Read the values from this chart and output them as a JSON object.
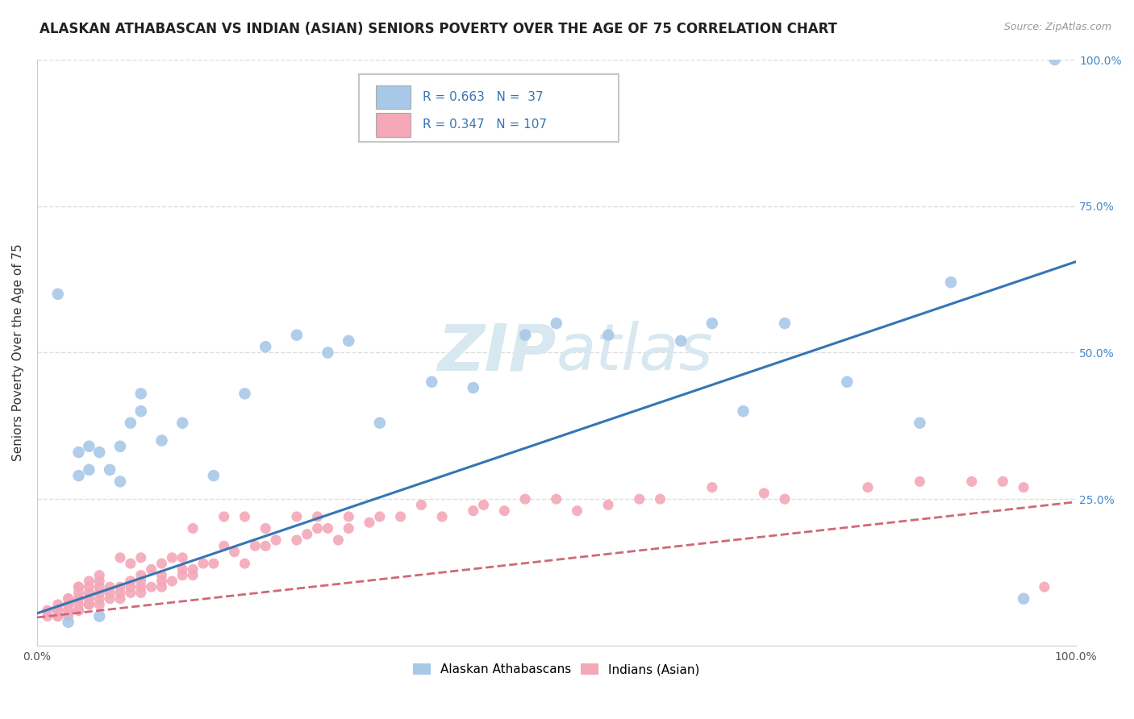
{
  "title": "ALASKAN ATHABASCAN VS INDIAN (ASIAN) SENIORS POVERTY OVER THE AGE OF 75 CORRELATION CHART",
  "source": "Source: ZipAtlas.com",
  "ylabel": "Seniors Poverty Over the Age of 75",
  "xlim": [
    0,
    1.0
  ],
  "ylim": [
    0,
    1.0
  ],
  "blue_R": 0.663,
  "blue_N": 37,
  "pink_R": 0.347,
  "pink_N": 107,
  "blue_color": "#a8c8e8",
  "pink_color": "#f4a8b8",
  "blue_line_color": "#3575b5",
  "pink_line_color": "#d06878",
  "background_color": "#ffffff",
  "plot_bg_color": "#ffffff",
  "grid_color": "#dddddd",
  "watermark_color": "#d8e8f0",
  "legend_label_blue": "Alaskan Athabascans",
  "legend_label_pink": "Indians (Asian)",
  "title_fontsize": 12,
  "axis_label_fontsize": 11,
  "tick_fontsize": 10,
  "right_ytick_labels": [
    "25.0%",
    "50.0%",
    "75.0%",
    "100.0%"
  ],
  "right_ytick_positions": [
    0.25,
    0.5,
    0.75,
    1.0
  ],
  "blue_line_x0": 0.0,
  "blue_line_y0": 0.055,
  "blue_line_x1": 1.0,
  "blue_line_y1": 0.655,
  "pink_line_x0": 0.0,
  "pink_line_y0": 0.048,
  "pink_line_x1": 1.0,
  "pink_line_y1": 0.245,
  "blue_scatter_x": [
    0.02,
    0.03,
    0.04,
    0.04,
    0.05,
    0.05,
    0.06,
    0.06,
    0.07,
    0.08,
    0.08,
    0.09,
    0.1,
    0.1,
    0.12,
    0.14,
    0.17,
    0.2,
    0.22,
    0.25,
    0.28,
    0.3,
    0.33,
    0.38,
    0.42,
    0.47,
    0.5,
    0.55,
    0.62,
    0.65,
    0.68,
    0.72,
    0.78,
    0.85,
    0.88,
    0.95,
    0.98
  ],
  "blue_scatter_y": [
    0.6,
    0.04,
    0.29,
    0.33,
    0.3,
    0.34,
    0.05,
    0.33,
    0.3,
    0.28,
    0.34,
    0.38,
    0.4,
    0.43,
    0.35,
    0.38,
    0.29,
    0.43,
    0.51,
    0.53,
    0.5,
    0.52,
    0.38,
    0.45,
    0.44,
    0.53,
    0.55,
    0.53,
    0.52,
    0.55,
    0.4,
    0.55,
    0.45,
    0.38,
    0.62,
    0.08,
    1.0
  ],
  "pink_scatter_x": [
    0.01,
    0.01,
    0.02,
    0.02,
    0.02,
    0.02,
    0.02,
    0.03,
    0.03,
    0.03,
    0.03,
    0.03,
    0.03,
    0.03,
    0.04,
    0.04,
    0.04,
    0.04,
    0.04,
    0.04,
    0.04,
    0.05,
    0.05,
    0.05,
    0.05,
    0.05,
    0.05,
    0.05,
    0.06,
    0.06,
    0.06,
    0.06,
    0.06,
    0.06,
    0.07,
    0.07,
    0.07,
    0.08,
    0.08,
    0.08,
    0.08,
    0.09,
    0.09,
    0.09,
    0.09,
    0.1,
    0.1,
    0.1,
    0.1,
    0.1,
    0.11,
    0.11,
    0.12,
    0.12,
    0.12,
    0.12,
    0.13,
    0.13,
    0.14,
    0.14,
    0.14,
    0.15,
    0.15,
    0.15,
    0.16,
    0.17,
    0.18,
    0.18,
    0.19,
    0.2,
    0.2,
    0.21,
    0.22,
    0.22,
    0.23,
    0.25,
    0.25,
    0.26,
    0.27,
    0.27,
    0.28,
    0.29,
    0.3,
    0.3,
    0.32,
    0.33,
    0.35,
    0.37,
    0.39,
    0.42,
    0.43,
    0.45,
    0.47,
    0.5,
    0.52,
    0.55,
    0.58,
    0.6,
    0.65,
    0.7,
    0.72,
    0.8,
    0.85,
    0.9,
    0.93,
    0.95,
    0.97
  ],
  "pink_scatter_y": [
    0.05,
    0.06,
    0.05,
    0.06,
    0.06,
    0.07,
    0.05,
    0.05,
    0.06,
    0.06,
    0.07,
    0.08,
    0.08,
    0.07,
    0.06,
    0.06,
    0.07,
    0.08,
    0.09,
    0.1,
    0.1,
    0.07,
    0.07,
    0.08,
    0.08,
    0.09,
    0.1,
    0.11,
    0.07,
    0.08,
    0.09,
    0.1,
    0.11,
    0.12,
    0.08,
    0.09,
    0.1,
    0.08,
    0.09,
    0.1,
    0.15,
    0.09,
    0.1,
    0.11,
    0.14,
    0.09,
    0.1,
    0.11,
    0.12,
    0.15,
    0.1,
    0.13,
    0.1,
    0.11,
    0.12,
    0.14,
    0.11,
    0.15,
    0.12,
    0.13,
    0.15,
    0.12,
    0.13,
    0.2,
    0.14,
    0.14,
    0.22,
    0.17,
    0.16,
    0.14,
    0.22,
    0.17,
    0.17,
    0.2,
    0.18,
    0.18,
    0.22,
    0.19,
    0.2,
    0.22,
    0.2,
    0.18,
    0.2,
    0.22,
    0.21,
    0.22,
    0.22,
    0.24,
    0.22,
    0.23,
    0.24,
    0.23,
    0.25,
    0.25,
    0.23,
    0.24,
    0.25,
    0.25,
    0.27,
    0.26,
    0.25,
    0.27,
    0.28,
    0.28,
    0.28,
    0.27,
    0.1
  ]
}
